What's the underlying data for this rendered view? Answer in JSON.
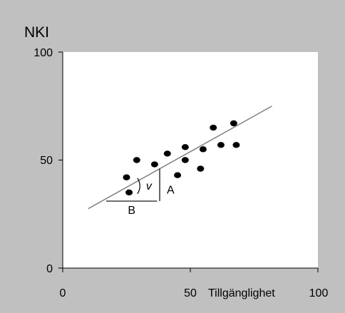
{
  "chart_data": {
    "type": "scatter",
    "title": "NKI",
    "xlabel": "Tillgänglighet",
    "ylabel": "",
    "xlim": [
      0,
      100
    ],
    "ylim": [
      0,
      100
    ],
    "x_ticks": [
      "0",
      "50",
      "100"
    ],
    "y_ticks": [
      "0",
      "50",
      "100"
    ],
    "grid": false,
    "background_color": "#c0c0c0",
    "plot_area_color": "#ffffff",
    "trendline_color": "#808080",
    "points": [
      {
        "x": 25,
        "y": 42
      },
      {
        "x": 26,
        "y": 35
      },
      {
        "x": 29,
        "y": 50
      },
      {
        "x": 36,
        "y": 48
      },
      {
        "x": 41,
        "y": 53
      },
      {
        "x": 45,
        "y": 43
      },
      {
        "x": 48,
        "y": 50
      },
      {
        "x": 48,
        "y": 56
      },
      {
        "x": 54,
        "y": 46
      },
      {
        "x": 55,
        "y": 55
      },
      {
        "x": 59,
        "y": 65
      },
      {
        "x": 62,
        "y": 57
      },
      {
        "x": 67,
        "y": 67
      },
      {
        "x": 68,
        "y": 57
      }
    ],
    "trendline": {
      "x": [
        10,
        82
      ],
      "y": [
        27.5,
        75
      ]
    },
    "annotations": {
      "rise_label": "A",
      "run_label": "B",
      "angle_label": "v",
      "run_line": {
        "x": [
          17,
          37
        ],
        "y": [
          31,
          31
        ]
      },
      "rise_line": {
        "x": [
          38,
          38
        ],
        "y": [
          31,
          46
        ]
      },
      "angle_arc_center": {
        "x": 29,
        "y": 38
      }
    }
  }
}
